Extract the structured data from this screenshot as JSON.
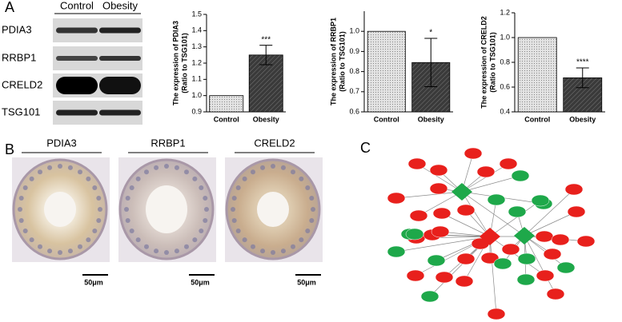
{
  "panel_labels": [
    "A",
    "B",
    "C"
  ],
  "blot": {
    "columns": [
      "Control",
      "Obesity"
    ],
    "rows": [
      "PDIA3",
      "RRBP1",
      "CRELD2",
      "TSG101"
    ]
  },
  "histology": {
    "labels": [
      "PDIA3",
      "RRBP1",
      "CRELD2"
    ],
    "scale_bar": "50μm"
  },
  "chart_data": [
    {
      "type": "bar",
      "ylabel": [
        "The expression of PDIA3",
        "(Ratio to TSG101)"
      ],
      "categories": [
        "Control",
        "Obesity"
      ],
      "values": [
        1.0,
        1.25
      ],
      "errors": [
        null,
        0.06
      ],
      "annotation": "***",
      "ylim": [
        0.9,
        1.5
      ],
      "yticks": [
        0.9,
        {
          "value": 1.0,
          "label": "1.0"
        },
        1.1,
        1.2,
        1.3,
        1.4,
        1.5
      ]
    },
    {
      "type": "bar",
      "ylabel": [
        "The expression of RRBP1",
        "(Ratio to TSG101)"
      ],
      "categories": [
        "Control",
        "Obesity"
      ],
      "values": [
        1.0,
        0.845
      ],
      "errors": [
        null,
        0.12
      ],
      "annotation": "*",
      "ylim": [
        0.6,
        1.1
      ],
      "yticks": [
        0.6,
        0.7,
        0.8,
        0.9,
        {
          "value": 1.0,
          "label": "1.0"
        }
      ]
    },
    {
      "type": "bar",
      "ylabel": [
        "The expression of CRELD2",
        "(Ratio to TSG101)"
      ],
      "categories": [
        "Control",
        "Obesity"
      ],
      "values": [
        1.0,
        0.675
      ],
      "errors": [
        null,
        0.08
      ],
      "annotation": "****",
      "ylim": [
        0.4,
        1.2
      ],
      "yticks": [
        0.4,
        0.6,
        0.8,
        {
          "value": 1.0,
          "label": "1.0"
        },
        1.2
      ]
    }
  ]
}
